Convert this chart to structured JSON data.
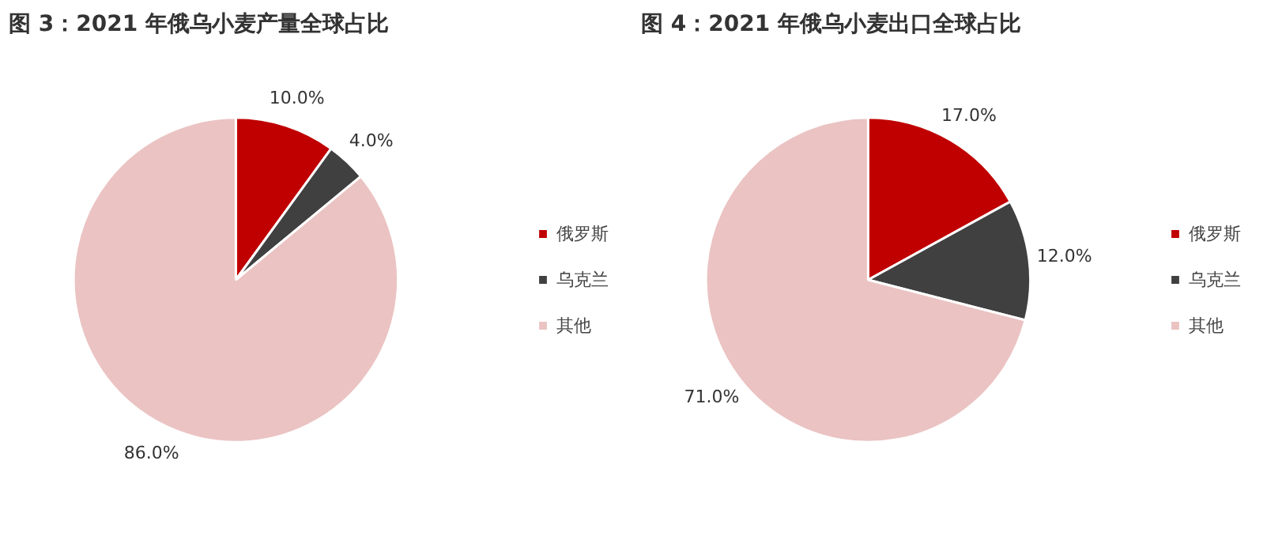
{
  "chart_data": [
    {
      "type": "pie",
      "title": "图 3：2021 年俄乌小麦产量全球占比",
      "categories": [
        "俄罗斯",
        "乌克兰",
        "其他"
      ],
      "values": [
        10.0,
        4.0,
        86.0
      ],
      "colors": [
        "#c00000",
        "#404040",
        "#ebc3c3"
      ],
      "value_labels": [
        "10.0%",
        "4.0%",
        "86.0%"
      ],
      "legend": "right"
    },
    {
      "type": "pie",
      "title": "图 4：2021 年俄乌小麦出口全球占比",
      "categories": [
        "俄罗斯",
        "乌克兰",
        "其他"
      ],
      "values": [
        17.0,
        12.0,
        71.0
      ],
      "colors": [
        "#c00000",
        "#404040",
        "#ebc3c3"
      ],
      "value_labels": [
        "17.0%",
        "12.0%",
        "71.0%"
      ],
      "legend": "right"
    }
  ]
}
